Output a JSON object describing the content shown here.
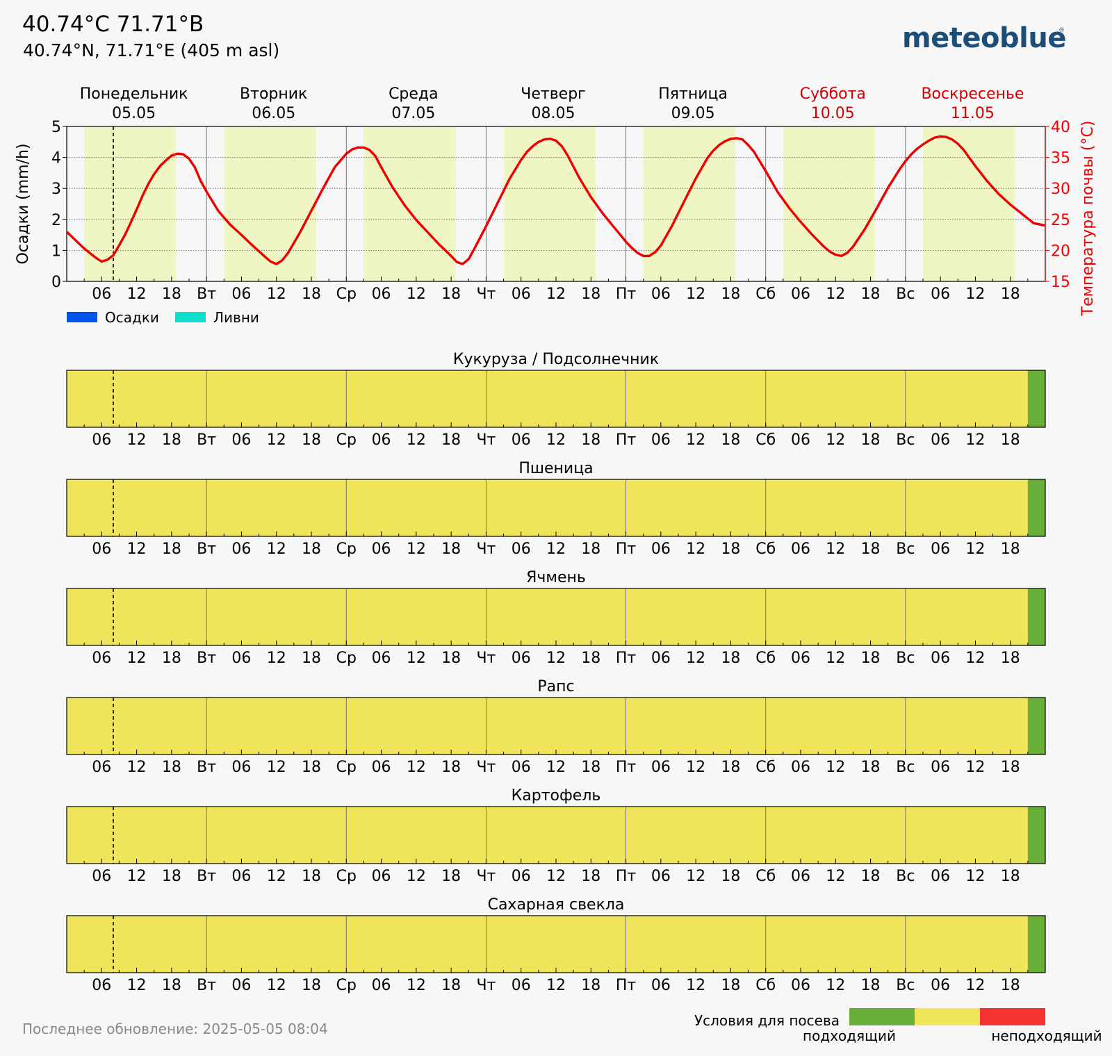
{
  "header": {
    "title": "40.74°C 71.71°B",
    "subtitle": "40.74°N, 71.71°E (405 m asl)",
    "logo": "meteoblue"
  },
  "days": [
    {
      "name": "Понедельник",
      "date": "05.05",
      "weekend": false
    },
    {
      "name": "Вторник",
      "date": "06.05",
      "weekend": false
    },
    {
      "name": "Среда",
      "date": "07.05",
      "weekend": false
    },
    {
      "name": "Четверг",
      "date": "08.05",
      "weekend": false
    },
    {
      "name": "Пятница",
      "date": "09.05",
      "weekend": false
    },
    {
      "name": "Суббота",
      "date": "10.05",
      "weekend": true
    },
    {
      "name": "Воскресенье",
      "date": "11.05",
      "weekend": true
    }
  ],
  "x_tick_labels": [
    "",
    "06",
    "12",
    "18",
    "Вт",
    "06",
    "12",
    "18",
    "Ср",
    "06",
    "12",
    "18",
    "Чт",
    "06",
    "12",
    "18",
    "Пт",
    "06",
    "12",
    "18",
    "Сб",
    "06",
    "12",
    "18",
    "Вс",
    "06",
    "12",
    "18"
  ],
  "colors": {
    "temperature": "#ee0000",
    "daylight": "#f0f5c4",
    "precipitation": "#0055ee",
    "showers": "#11ddcc",
    "suitable": "#6aae3a",
    "neutral": "#f0e55a",
    "unsuitable": "#f43333",
    "weekend": "#d40000",
    "logo": "#1b4f7a"
  },
  "chart_data": {
    "type": "line",
    "now_hour": 8,
    "left_axis": {
      "label": "Осадки (mm/h)",
      "range": [
        0,
        5
      ],
      "ticks": [
        "0",
        "1",
        "2",
        "3",
        "4",
        "5"
      ]
    },
    "right_axis": {
      "label": "Температура почвы (°C)",
      "range": [
        15,
        40
      ],
      "ticks": [
        "15",
        "20",
        "25",
        "30",
        "35",
        "40"
      ]
    },
    "x": {
      "unit": "hours from 05.05 00:00",
      "range": [
        0,
        168
      ]
    },
    "daylight_hours": [
      [
        3,
        18.8
      ],
      [
        27,
        42.8
      ],
      [
        51,
        66.8
      ],
      [
        75,
        90.8
      ],
      [
        99,
        114.8
      ],
      [
        123,
        138.8
      ],
      [
        147,
        162.8
      ]
    ],
    "legend": [
      {
        "label": "Осадки",
        "color": "#0055ee"
      },
      {
        "label": "Ливни",
        "color": "#11ddcc"
      }
    ],
    "series": [
      {
        "name": "Температура почвы",
        "axis": "right",
        "points": [
          [
            0,
            23
          ],
          [
            3,
            20.3
          ],
          [
            5,
            18.8
          ],
          [
            6,
            18.2
          ],
          [
            7,
            18.5
          ],
          [
            8,
            19.2
          ],
          [
            9,
            20.8
          ],
          [
            10,
            22.5
          ],
          [
            11,
            24.5
          ],
          [
            12,
            26.6
          ],
          [
            13,
            28.8
          ],
          [
            14,
            30.7
          ],
          [
            15,
            32.3
          ],
          [
            16,
            33.6
          ],
          [
            17,
            34.5
          ],
          [
            18,
            35.3
          ],
          [
            19,
            35.6
          ],
          [
            20,
            35.5
          ],
          [
            21,
            34.8
          ],
          [
            22,
            33.4
          ],
          [
            23,
            31.2
          ],
          [
            24,
            29.5
          ],
          [
            26,
            26.4
          ],
          [
            28,
            24.2
          ],
          [
            30,
            22.5
          ],
          [
            32,
            20.7
          ],
          [
            34,
            19
          ],
          [
            35,
            18.2
          ],
          [
            36,
            17.8
          ],
          [
            37,
            18.4
          ],
          [
            38,
            19.6
          ],
          [
            40,
            22.8
          ],
          [
            42,
            26.4
          ],
          [
            44,
            30
          ],
          [
            46,
            33.4
          ],
          [
            48,
            35.6
          ],
          [
            49,
            36.3
          ],
          [
            50,
            36.6
          ],
          [
            51,
            36.6
          ],
          [
            52,
            36.2
          ],
          [
            53,
            35.2
          ],
          [
            54,
            33.4
          ],
          [
            56,
            30.1
          ],
          [
            58,
            27.3
          ],
          [
            60,
            24.9
          ],
          [
            62,
            22.9
          ],
          [
            64,
            20.9
          ],
          [
            66,
            19.1
          ],
          [
            67,
            18.1
          ],
          [
            68,
            17.8
          ],
          [
            69,
            18.6
          ],
          [
            70,
            20.3
          ],
          [
            72,
            23.9
          ],
          [
            74,
            27.7
          ],
          [
            76,
            31.5
          ],
          [
            78,
            34.6
          ],
          [
            79,
            35.9
          ],
          [
            80,
            36.8
          ],
          [
            81,
            37.5
          ],
          [
            82,
            37.9
          ],
          [
            83,
            38
          ],
          [
            84,
            37.7
          ],
          [
            85,
            36.8
          ],
          [
            86,
            35.3
          ],
          [
            88,
            31.7
          ],
          [
            90,
            28.6
          ],
          [
            92,
            26
          ],
          [
            94,
            23.7
          ],
          [
            96,
            21.4
          ],
          [
            97,
            20.4
          ],
          [
            98,
            19.6
          ],
          [
            99,
            19.1
          ],
          [
            100,
            19.1
          ],
          [
            101,
            19.7
          ],
          [
            102,
            20.8
          ],
          [
            104,
            24.1
          ],
          [
            106,
            27.9
          ],
          [
            108,
            31.6
          ],
          [
            110,
            34.9
          ],
          [
            111,
            36.1
          ],
          [
            112,
            37
          ],
          [
            113,
            37.6
          ],
          [
            114,
            38
          ],
          [
            115,
            38.1
          ],
          [
            116,
            37.9
          ],
          [
            117,
            37
          ],
          [
            118,
            35.9
          ],
          [
            120,
            32.8
          ],
          [
            122,
            29.5
          ],
          [
            124,
            26.9
          ],
          [
            126,
            24.6
          ],
          [
            128,
            22.5
          ],
          [
            130,
            20.6
          ],
          [
            131,
            19.8
          ],
          [
            132,
            19.3
          ],
          [
            133,
            19.1
          ],
          [
            134,
            19.6
          ],
          [
            135,
            20.6
          ],
          [
            137,
            23.4
          ],
          [
            139,
            26.7
          ],
          [
            141,
            30.1
          ],
          [
            143,
            33.1
          ],
          [
            144,
            34.4
          ],
          [
            145,
            35.5
          ],
          [
            146,
            36.4
          ],
          [
            147,
            37.1
          ],
          [
            148,
            37.7
          ],
          [
            149,
            38.2
          ],
          [
            150,
            38.4
          ],
          [
            151,
            38.3
          ],
          [
            152,
            37.9
          ],
          [
            153,
            37.2
          ],
          [
            154,
            36.2
          ],
          [
            156,
            33.6
          ],
          [
            158,
            31.2
          ],
          [
            160,
            29.1
          ],
          [
            162,
            27.4
          ],
          [
            164,
            25.9
          ],
          [
            166,
            24.4
          ],
          [
            168,
            24
          ]
        ]
      }
    ]
  },
  "crops": [
    {
      "title": "Кукуруза / Подсолнечник",
      "segments": [
        {
          "from": 0,
          "to": 165,
          "status": "neutral"
        },
        {
          "from": 165,
          "to": 168,
          "status": "suitable"
        }
      ]
    },
    {
      "title": "Пшеница",
      "segments": [
        {
          "from": 0,
          "to": 165,
          "status": "neutral"
        },
        {
          "from": 165,
          "to": 168,
          "status": "suitable"
        }
      ]
    },
    {
      "title": "Ячмень",
      "segments": [
        {
          "from": 0,
          "to": 165,
          "status": "neutral"
        },
        {
          "from": 165,
          "to": 168,
          "status": "suitable"
        }
      ]
    },
    {
      "title": "Рапс",
      "segments": [
        {
          "from": 0,
          "to": 165,
          "status": "neutral"
        },
        {
          "from": 165,
          "to": 168,
          "status": "suitable"
        }
      ]
    },
    {
      "title": "Картофель",
      "segments": [
        {
          "from": 0,
          "to": 165,
          "status": "neutral"
        },
        {
          "from": 165,
          "to": 168,
          "status": "suitable"
        }
      ]
    },
    {
      "title": "Сахарная свекла",
      "segments": [
        {
          "from": 0,
          "to": 165,
          "status": "neutral"
        },
        {
          "from": 165,
          "to": 168,
          "status": "suitable"
        }
      ]
    }
  ],
  "bottom_legend": {
    "title": "Условия для посева",
    "suitable_label": "подходящий",
    "unsuitable_label": "неподходящий"
  },
  "footer": {
    "last_update": "Последнее обновление: 2025-05-05 08:04"
  }
}
